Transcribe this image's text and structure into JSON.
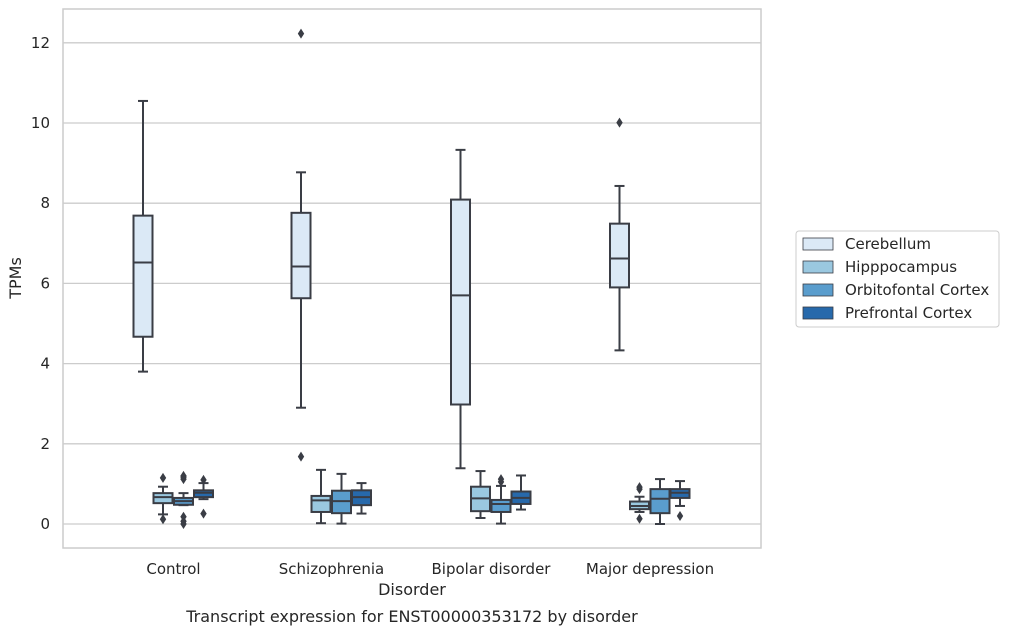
{
  "chart_data": {
    "type": "boxplot",
    "title": "",
    "caption": "Transcript expression for ENST00000353172 by disorder",
    "xlabel": "Disorder",
    "ylabel": "TPMs",
    "ylim": [
      -0.6,
      12.85
    ],
    "yticks": [
      0,
      2,
      4,
      6,
      8,
      10,
      12
    ],
    "grid": true,
    "legend_position": "right",
    "categories": [
      "Control",
      "Schizophrenia",
      "Bipolar disorder",
      "Major depression"
    ],
    "series": [
      {
        "name": "Cerebellum",
        "color": "#dbe9f6",
        "boxes": [
          {
            "whisker_low": 3.8,
            "q1": 4.67,
            "median": 6.52,
            "q3": 7.69,
            "whisker_high": 10.55,
            "outliers": []
          },
          {
            "whisker_low": 2.9,
            "q1": 5.63,
            "median": 6.42,
            "q3": 7.76,
            "whisker_high": 8.77,
            "outliers": [
              1.68,
              12.23
            ]
          },
          {
            "whisker_low": 1.39,
            "q1": 2.98,
            "median": 5.7,
            "q3": 8.09,
            "whisker_high": 9.33,
            "outliers": []
          },
          {
            "whisker_low": 4.33,
            "q1": 5.9,
            "median": 6.62,
            "q3": 7.49,
            "whisker_high": 8.43,
            "outliers": [
              10.01
            ]
          }
        ]
      },
      {
        "name": "Hipppocampus",
        "color": "#9ac8e0",
        "boxes": [
          {
            "whisker_low": 0.24,
            "q1": 0.52,
            "median": 0.67,
            "q3": 0.77,
            "whisker_high": 0.93,
            "outliers": [
              0.12,
              1.15
            ]
          },
          {
            "whisker_low": 0.02,
            "q1": 0.3,
            "median": 0.59,
            "q3": 0.7,
            "whisker_high": 1.35,
            "outliers": []
          },
          {
            "whisker_low": 0.15,
            "q1": 0.32,
            "median": 0.64,
            "q3": 0.93,
            "whisker_high": 1.32,
            "outliers": []
          },
          {
            "whisker_low": 0.3,
            "q1": 0.37,
            "median": 0.45,
            "q3": 0.56,
            "whisker_high": 0.68,
            "outliers": [
              0.13,
              0.87,
              0.92
            ]
          }
        ]
      },
      {
        "name": "Orbitofontal Cortex",
        "color": "#5a9dcd",
        "boxes": [
          {
            "whisker_low": 0.47,
            "q1": 0.48,
            "median": 0.57,
            "q3": 0.65,
            "whisker_high": 0.77,
            "outliers": [
              0.0,
              0.07,
              0.18,
              1.12,
              1.17,
              1.2
            ]
          },
          {
            "whisker_low": 0.01,
            "q1": 0.27,
            "median": 0.57,
            "q3": 0.83,
            "whisker_high": 1.25,
            "outliers": []
          },
          {
            "whisker_low": 0.01,
            "q1": 0.3,
            "median": 0.5,
            "q3": 0.6,
            "whisker_high": 0.95,
            "outliers": [
              1.05,
              1.12
            ]
          },
          {
            "whisker_low": 0.0,
            "q1": 0.27,
            "median": 0.63,
            "q3": 0.87,
            "whisker_high": 1.12,
            "outliers": []
          }
        ]
      },
      {
        "name": "Prefrontal Cortex",
        "color": "#2769ab",
        "boxes": [
          {
            "whisker_low": 0.62,
            "q1": 0.67,
            "median": 0.78,
            "q3": 0.84,
            "whisker_high": 1.02,
            "outliers": [
              0.26,
              1.1
            ]
          },
          {
            "whisker_low": 0.26,
            "q1": 0.47,
            "median": 0.67,
            "q3": 0.84,
            "whisker_high": 1.02,
            "outliers": []
          },
          {
            "whisker_low": 0.36,
            "q1": 0.5,
            "median": 0.65,
            "q3": 0.81,
            "whisker_high": 1.21,
            "outliers": []
          },
          {
            "whisker_low": 0.45,
            "q1": 0.65,
            "median": 0.78,
            "q3": 0.87,
            "whisker_high": 1.07,
            "outliers": [
              0.2
            ]
          }
        ]
      }
    ]
  },
  "colors": {
    "box_edge": "#3a3d45",
    "grid": "#cccccc",
    "frame": "#cccccc",
    "text": "#262626",
    "background": "#ffffff"
  }
}
